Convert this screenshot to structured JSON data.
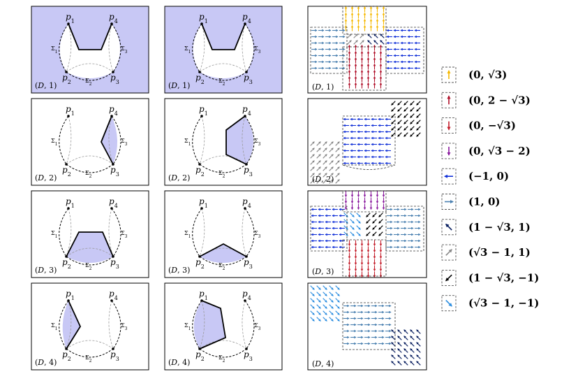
{
  "panel_label_prefix": "(D,",
  "panel_label_suffix": ")",
  "vertex_labels": {
    "p1": "p",
    "p2": "p",
    "p3": "p",
    "p4": "p",
    "sub1": "1",
    "sub2": "2",
    "sub3": "3",
    "sub4": "4"
  },
  "sigma_labels": {
    "s1": "Σ",
    "s2": "Σ",
    "s3": "Σ",
    "sub1": "1",
    "sub2": "2",
    "sub3": "3"
  },
  "rows": [
    {
      "index": "1",
      "left_shading": "full",
      "mid_shading": "full"
    },
    {
      "index": "2",
      "left_shading": "right-sliver",
      "mid_shading": "right-region"
    },
    {
      "index": "3",
      "left_shading": "bottom-trapezoid",
      "mid_shading": "bottom-triangle"
    },
    {
      "index": "4",
      "left_shading": "left-sliver",
      "mid_shading": "left-region"
    }
  ],
  "legend": [
    {
      "arrow": "up-arrow-icon",
      "color": "#f5b800",
      "label": "(0, √3)"
    },
    {
      "arrow": "up-arrow-icon",
      "color": "#b0102a",
      "label": "(0, 2 − √3)"
    },
    {
      "arrow": "down-arrow-icon",
      "color": "#c41e2c",
      "label": "(0, −√3)"
    },
    {
      "arrow": "down-arrow-icon",
      "color": "#8a1a9e",
      "label": "(0, √3 − 2)"
    },
    {
      "arrow": "left-arrow-icon",
      "color": "#1030d8",
      "label": "(−1, 0)"
    },
    {
      "arrow": "right-arrow-icon",
      "color": "#4a80b0",
      "label": "(1, 0)"
    },
    {
      "arrow": "up-left-arrow-icon",
      "color": "#0a2060",
      "label": "(1 − √3, 1)"
    },
    {
      "arrow": "up-right-arrow-icon",
      "color": "#888888",
      "label": "(√3 − 1, 1)"
    },
    {
      "arrow": "down-left-arrow-icon",
      "color": "#000000",
      "label": "(1 − √3, −1)"
    },
    {
      "arrow": "down-right-arrow-icon",
      "color": "#2f8fe0",
      "label": "(√3 − 1, −1)"
    }
  ],
  "colors": {
    "shade": "#c8c8f5",
    "frame": "#000000",
    "gray_arc": "#999999"
  }
}
